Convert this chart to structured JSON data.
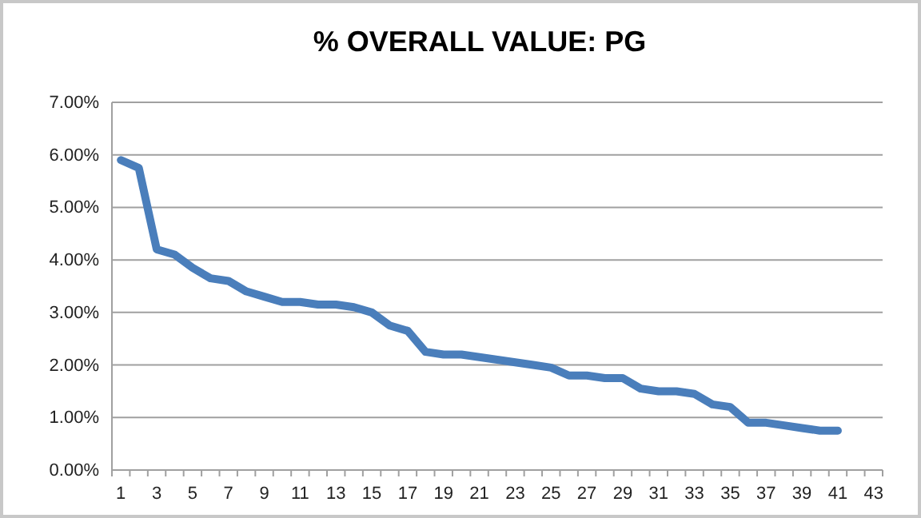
{
  "chart_data": {
    "type": "line",
    "title": "% OVERALL VALUE: PG",
    "x": [
      1,
      2,
      3,
      4,
      5,
      6,
      7,
      8,
      9,
      10,
      11,
      12,
      13,
      14,
      15,
      16,
      17,
      18,
      19,
      20,
      21,
      22,
      23,
      24,
      25,
      26,
      27,
      28,
      29,
      30,
      31,
      32,
      33,
      34,
      35,
      36,
      37,
      38,
      39,
      40,
      41
    ],
    "series": [
      {
        "color": "#4a7ebb",
        "values": [
          5.9,
          5.75,
          4.2,
          4.1,
          3.85,
          3.65,
          3.6,
          3.4,
          3.3,
          3.2,
          3.2,
          3.15,
          3.15,
          3.1,
          3.0,
          2.75,
          2.65,
          2.25,
          2.2,
          2.2,
          2.15,
          2.1,
          2.05,
          2.0,
          1.95,
          1.8,
          1.8,
          1.75,
          1.75,
          1.55,
          1.5,
          1.5,
          1.45,
          1.25,
          1.2,
          0.9,
          0.9,
          0.85,
          0.8,
          0.75,
          0.75
        ]
      }
    ],
    "xlim": [
      0.5,
      43.5
    ],
    "xticks": [
      1,
      3,
      5,
      7,
      9,
      11,
      13,
      15,
      17,
      19,
      21,
      23,
      25,
      27,
      29,
      31,
      33,
      35,
      37,
      39,
      41,
      43,
      {
        "value": 0.5,
        "label": null
      },
      {
        "value": 1.5,
        "label": null
      },
      {
        "value": 2.5,
        "label": null
      },
      {
        "value": 3.5,
        "label": null
      },
      {
        "value": 4.5,
        "label": null
      },
      {
        "value": 5.5,
        "label": null
      },
      {
        "value": 6.5,
        "label": null
      },
      {
        "value": 7.5,
        "label": null
      },
      {
        "value": 8.5,
        "label": null
      },
      {
        "value": 9.5,
        "label": null
      },
      {
        "value": 10.5,
        "label": null
      },
      {
        "value": 11.5,
        "label": null
      },
      {
        "value": 12.5,
        "label": null
      },
      {
        "value": 13.5,
        "label": null
      },
      {
        "value": 14.5,
        "label": null
      },
      {
        "value": 15.5,
        "label": null
      },
      {
        "value": 16.5,
        "label": null
      },
      {
        "value": 17.5,
        "label": null
      },
      {
        "value": 18.5,
        "label": null
      },
      {
        "value": 19.5,
        "label": null
      },
      {
        "value": 20.5,
        "label": null
      },
      {
        "value": 21.5,
        "label": null
      },
      {
        "value": 22.5,
        "label": null
      },
      {
        "value": 23.5,
        "label": null
      },
      {
        "value": 24.5,
        "label": null
      },
      {
        "value": 25.5,
        "label": null
      },
      {
        "value": 26.5,
        "label": null
      },
      {
        "value": 27.5,
        "label": null
      },
      {
        "value": 28.5,
        "label": null
      },
      {
        "value": 29.5,
        "label": null
      },
      {
        "value": 30.5,
        "label": null
      },
      {
        "value": 31.5,
        "label": null
      },
      {
        "value": 32.5,
        "label": null
      },
      {
        "value": 33.5,
        "label": null
      },
      {
        "value": 34.5,
        "label": null
      },
      {
        "value": 35.5,
        "label": null
      },
      {
        "value": 36.5,
        "label": null
      },
      {
        "value": 37.5,
        "label": null
      },
      {
        "value": 38.5,
        "label": null
      },
      {
        "value": 39.5,
        "label": null
      },
      {
        "value": 40.5,
        "label": null
      },
      {
        "value": 41.5,
        "label": null
      },
      {
        "value": 42.5,
        "label": null
      },
      {
        "value": 43.5,
        "label": null
      }
    ],
    "ylim": [
      0,
      7
    ],
    "yticks": [
      {
        "value": 0,
        "label": "0.00%"
      },
      {
        "value": 1,
        "label": "1.00%"
      },
      {
        "value": 2,
        "label": "2.00%"
      },
      {
        "value": 3,
        "label": "3.00%"
      },
      {
        "value": 4,
        "label": "4.00%"
      },
      {
        "value": 5,
        "label": "5.00%"
      },
      {
        "value": 6,
        "label": "6.00%"
      },
      {
        "value": 7,
        "label": "7.00%"
      }
    ],
    "grid": "y",
    "marker": "none",
    "line_style": "solid"
  }
}
